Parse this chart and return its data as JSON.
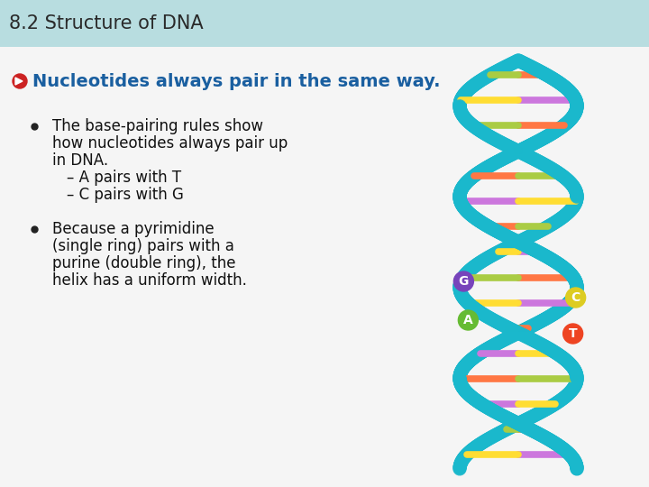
{
  "title": "8.2 Structure of DNA",
  "title_bg_color": "#b8dde0",
  "title_text_color": "#2a2a2a",
  "slide_bg_color": "#f5f5f5",
  "bullet_icon_color": "#cc2222",
  "heading_text": "Nucleotides always pair in the same way.",
  "heading_color": "#1a5fa0",
  "bullet1_line1": "The base-pairing rules show",
  "bullet1_line2": "how nucleotides always pair up",
  "bullet1_line3": "in DNA.",
  "bullet1_sub1": "– A pairs with T",
  "bullet1_sub2": "– C pairs with G",
  "bullet2_line1": "Because a pyrimidine",
  "bullet2_line2": "(single ring) pairs with a",
  "bullet2_line3": "purine (double ring), the",
  "bullet2_line4": "helix has a uniform width.",
  "dna_helix_color": "#1ab8cc",
  "bar_colors": [
    "#ff6633",
    "#99cc44",
    "#cc66cc",
    "#ffdd00",
    "#ff6633",
    "#aabb44",
    "#cc66cc",
    "#ffdd00",
    "#ff6633",
    "#99cc44",
    "#cc66cc",
    "#ffdd00",
    "#ff6633",
    "#99cc44"
  ],
  "nucleotide_G_color": "#7744bb",
  "nucleotide_C_color": "#ddcc22",
  "nucleotide_A_color": "#66bb33",
  "nucleotide_T_color": "#ee4422",
  "title_font_size": 15,
  "heading_font_size": 14,
  "body_font_size": 12
}
